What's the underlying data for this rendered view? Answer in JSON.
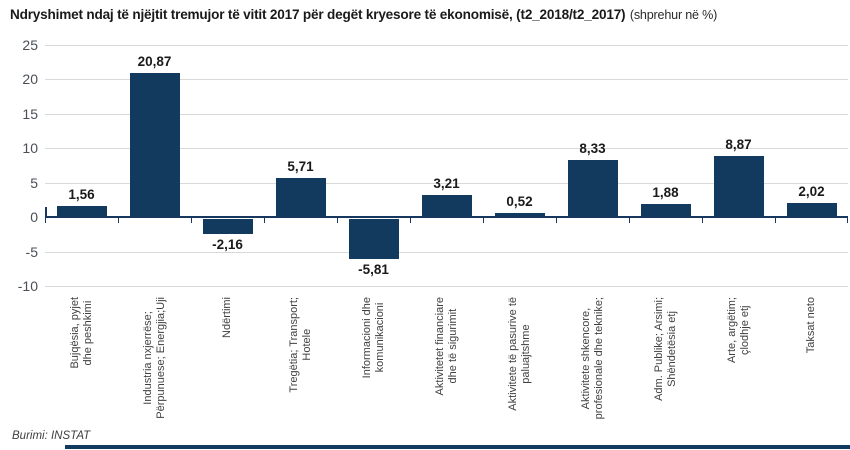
{
  "title": {
    "main": "Ndryshimet ndaj të njëjtit tremujor të vitit 2017 për degët kryesore të ekonomisë, (t2_2018/t2_2017)",
    "suffix": "(shprehur në %)"
  },
  "source": "Burimi: INSTAT",
  "colors": {
    "bar": "#123a5f",
    "axis": "#17375e",
    "gridline": "#d9d9d9",
    "y_tick_label": "#4a4f57",
    "value_label": "#1a1a1a",
    "category_label": "#3f3f3f",
    "bottom_rule": "#123a5f"
  },
  "chart_data": {
    "type": "bar",
    "title": "Ndryshimet ndaj të njëjtit tremujor të vitit 2017 për degët kryesore të ekonomisë, (t2_2018/t2_2017) (shprehur në %)",
    "categories": [
      [
        "Bujqësia, pyjet",
        "dhe peshkimi"
      ],
      [
        "Industria nxjerrëse;",
        "Përpunuese; Energjia;Uji"
      ],
      [
        "Ndërtimi"
      ],
      [
        "Tregëtia; Transport;",
        "Hotele"
      ],
      [
        "Informacioni dhe",
        "komunikacioni"
      ],
      [
        "Aktivitetet financiare",
        "dhe të sigurimit"
      ],
      [
        "Aktivitete të pasurive të",
        "paluajtshme"
      ],
      [
        "Aktivitete shkencore,",
        "profesionale dhe teknike;"
      ],
      [
        "Adm. Publike; Arsimi;",
        "Shëndetësia etj"
      ],
      [
        "Arte, argëtim;",
        "çlodhje etj"
      ],
      [
        "Taksat neto"
      ]
    ],
    "values": [
      1.56,
      20.87,
      -2.16,
      5.71,
      -5.81,
      3.21,
      0.52,
      8.33,
      1.88,
      8.87,
      2.02
    ],
    "value_labels": [
      "1,56",
      "20,87",
      "-2,16",
      "5,71",
      "-5,81",
      "3,21",
      "0,52",
      "8,33",
      "1,88",
      "8,87",
      "2,02"
    ],
    "ylim": [
      -10,
      25
    ],
    "yticks": [
      25,
      20,
      15,
      10,
      5,
      0,
      -5,
      -10
    ],
    "ytick_interval": 5,
    "grid": true,
    "legend": false,
    "xlabel": "",
    "ylabel": ""
  }
}
